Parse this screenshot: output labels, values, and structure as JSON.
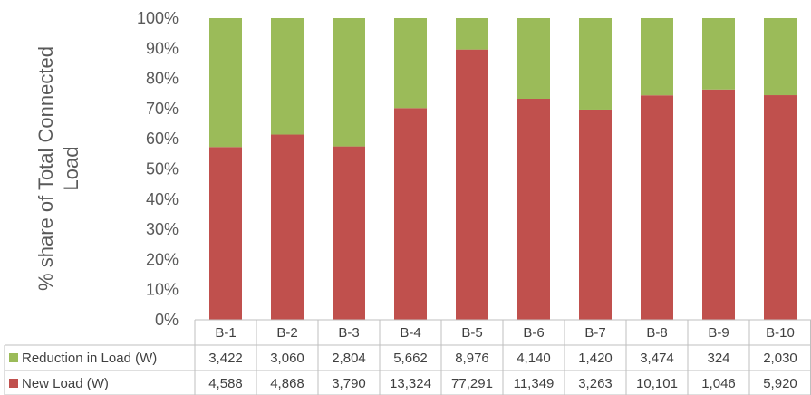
{
  "chart_data": {
    "type": "bar",
    "stacked": true,
    "normalized": true,
    "categories": [
      "B-1",
      "B-2",
      "B-3",
      "B-4",
      "B-5",
      "B-6",
      "B-7",
      "B-8",
      "B-9",
      "B-10"
    ],
    "series": [
      {
        "name": "New Load (W)",
        "color": "#c0504d",
        "values": [
          4588,
          4868,
          3790,
          13324,
          77291,
          11349,
          3263,
          10101,
          1046,
          5920
        ],
        "labels": [
          "4,588",
          "4,868",
          "3,790",
          "13,324",
          "77,291",
          "11,349",
          "3,263",
          "10,101",
          "1,046",
          "5,920"
        ]
      },
      {
        "name": "Reduction in Load (W)",
        "color": "#9bbb59",
        "values": [
          3422,
          3060,
          2804,
          5662,
          8976,
          4140,
          1420,
          3474,
          324,
          2030
        ],
        "labels": [
          "3,422",
          "3,060",
          "2,804",
          "5,662",
          "8,976",
          "4,140",
          "1,420",
          "3,474",
          "324",
          "2,030"
        ]
      }
    ],
    "ylabel": "% share of Total Connected Load",
    "ylabel_lines": [
      "% share of Total Connected",
      "Load"
    ],
    "ylim": [
      0,
      100
    ],
    "yticks": [
      "0%",
      "10%",
      "20%",
      "30%",
      "40%",
      "50%",
      "60%",
      "70%",
      "80%",
      "90%",
      "100%"
    ],
    "table_rows_order": [
      "Reduction in Load (W)",
      "New Load (W)"
    ],
    "legend": "data-table"
  }
}
